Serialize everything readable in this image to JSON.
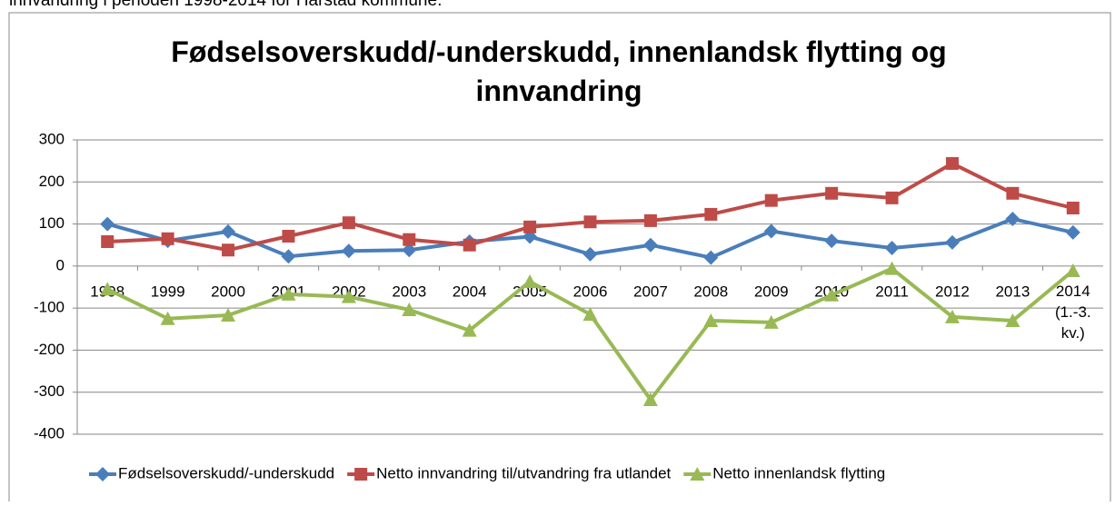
{
  "caption": "innvandring i perioden 1998-2014 for Harstad kommune.",
  "chart_data": {
    "type": "line",
    "title": "Fødselsoverskudd/-underskudd,  innenlandsk flytting og innvandring",
    "categories": [
      "1998",
      "1999",
      "2000",
      "2001",
      "2002",
      "2003",
      "2004",
      "2005",
      "2006",
      "2007",
      "2008",
      "2009",
      "2010",
      "2011",
      "2012",
      "2013",
      "2014 (1.-3. kv.)"
    ],
    "series": [
      {
        "name": "Fødselsoverskudd/-underskudd",
        "color": "#4a7ebb",
        "marker": "diamond",
        "values": [
          100,
          60,
          82,
          23,
          36,
          38,
          58,
          70,
          28,
          50,
          20,
          83,
          60,
          43,
          56,
          112,
          80
        ]
      },
      {
        "name": "Netto innvandring til/utvandring fra utlandet",
        "color": "#be4b48",
        "marker": "square",
        "values": [
          58,
          65,
          38,
          71,
          103,
          63,
          50,
          93,
          105,
          108,
          123,
          156,
          173,
          162,
          244,
          173,
          138
        ]
      },
      {
        "name": "Netto innenlandsk flytting",
        "color": "#98b954",
        "marker": "triangle",
        "values": [
          -55,
          -125,
          -117,
          -67,
          -73,
          -104,
          -153,
          -37,
          -115,
          -318,
          -130,
          -134,
          -69,
          -6,
          -121,
          -130,
          -11
        ]
      }
    ],
    "ylim": [
      -400,
      300
    ],
    "yticks": [
      -400,
      -300,
      -200,
      -100,
      0,
      100,
      200,
      300
    ],
    "grid": true,
    "legend": "bottom"
  }
}
